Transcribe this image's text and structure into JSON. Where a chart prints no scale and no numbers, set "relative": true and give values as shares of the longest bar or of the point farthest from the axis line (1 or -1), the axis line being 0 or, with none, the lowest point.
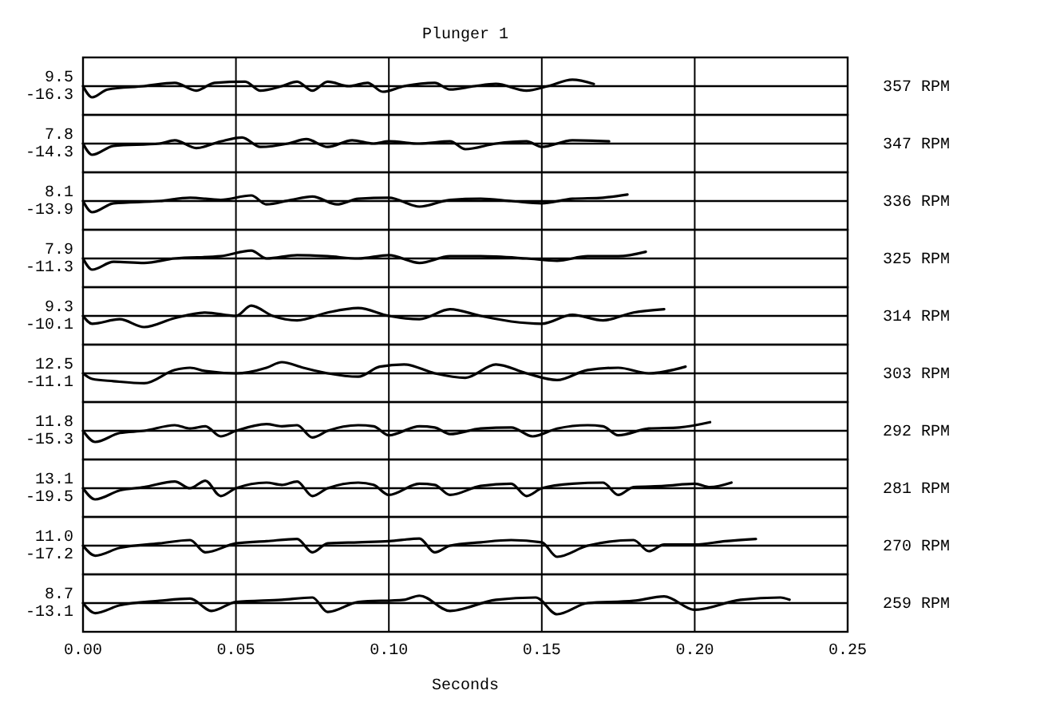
{
  "chart_data": [
    {
      "type": "line",
      "title": "Plunger 1",
      "relative": true,
      "y2label": "357 RPM",
      "annotations": [
        "9.5",
        "-16.3"
      ],
      "xlim": [
        0,
        0.25
      ],
      "xticks": [
        0,
        0.05,
        0.1,
        0.15,
        0.2,
        0.25
      ],
      "tick_labels": false,
      "grid": "x",
      "series": [
        {
          "color": "#000000",
          "x": [
            0,
            0.003,
            0.008,
            0.02,
            0.03,
            0.037,
            0.043,
            0.053,
            0.058,
            0.065,
            0.07,
            0.075,
            0.08,
            0.087,
            0.093,
            0.098,
            0.105,
            0.115,
            0.12,
            0.128,
            0.135,
            0.145,
            0.152,
            0.16,
            0.167
          ],
          "values": [
            0,
            -1,
            -0.3,
            0,
            0.3,
            -0.4,
            0.3,
            0.4,
            -0.4,
            0,
            0.4,
            -0.4,
            0.4,
            0,
            0.3,
            -0.5,
            0,
            0.3,
            -0.3,
            0,
            0.2,
            -0.4,
            0,
            0.58,
            0.2
          ]
        }
      ]
    },
    {
      "type": "line",
      "relative": true,
      "y2label": "347 RPM",
      "annotations": [
        "7.8",
        "-14.3"
      ],
      "xlim": [
        0,
        0.25
      ],
      "xticks": [
        0,
        0.05,
        0.1,
        0.15,
        0.2,
        0.25
      ],
      "tick_labels": false,
      "grid": "x",
      "series": [
        {
          "color": "#000000",
          "x": [
            0,
            0.003,
            0.01,
            0.025,
            0.03,
            0.037,
            0.045,
            0.052,
            0.058,
            0.067,
            0.073,
            0.08,
            0.088,
            0.095,
            0.1,
            0.11,
            0.12,
            0.125,
            0.135,
            0.145,
            0.15,
            0.16,
            0.172
          ],
          "values": [
            0,
            -1,
            -0.2,
            0,
            0.3,
            -0.4,
            0.2,
            0.55,
            -0.3,
            0,
            0.4,
            -0.3,
            0.3,
            0,
            0.2,
            0,
            0.2,
            -0.5,
            0,
            0.2,
            -0.3,
            0.3,
            0.2
          ]
        }
      ]
    },
    {
      "type": "line",
      "relative": true,
      "y2label": "336 RPM",
      "annotations": [
        "8.1",
        "-13.9"
      ],
      "xlim": [
        0,
        0.25
      ],
      "xticks": [
        0,
        0.05,
        0.1,
        0.15,
        0.2,
        0.25
      ],
      "tick_labels": false,
      "grid": "x",
      "series": [
        {
          "color": "#000000",
          "x": [
            0,
            0.003,
            0.01,
            0.025,
            0.035,
            0.045,
            0.055,
            0.06,
            0.068,
            0.075,
            0.083,
            0.09,
            0.1,
            0.11,
            0.12,
            0.13,
            0.14,
            0.15,
            0.16,
            0.17,
            0.178
          ],
          "values": [
            0,
            -1,
            -0.2,
            0,
            0.3,
            0.1,
            0.5,
            -0.3,
            0.1,
            0.4,
            -0.3,
            0.2,
            0.3,
            -0.5,
            0.1,
            0.2,
            0,
            -0.2,
            0.2,
            0.3,
            0.58
          ]
        }
      ]
    },
    {
      "type": "line",
      "relative": true,
      "y2label": "325 RPM",
      "annotations": [
        "7.9",
        "-11.3"
      ],
      "xlim": [
        0,
        0.25
      ],
      "xticks": [
        0,
        0.05,
        0.1,
        0.15,
        0.2,
        0.25
      ],
      "tick_labels": false,
      "grid": "x",
      "series": [
        {
          "color": "#000000",
          "x": [
            0,
            0.003,
            0.01,
            0.02,
            0.03,
            0.045,
            0.055,
            0.06,
            0.07,
            0.08,
            0.09,
            0.1,
            0.11,
            0.12,
            0.13,
            0.145,
            0.155,
            0.165,
            0.175,
            0.184
          ],
          "values": [
            0,
            -1,
            -0.3,
            -0.4,
            0,
            0.2,
            0.7,
            0,
            0.3,
            0.2,
            0,
            0.3,
            -0.4,
            0.2,
            0.2,
            0,
            -0.2,
            0.2,
            0.2,
            0.6
          ]
        }
      ]
    },
    {
      "type": "line",
      "relative": true,
      "y2label": "314 RPM",
      "annotations": [
        "9.3",
        "-10.1"
      ],
      "xlim": [
        0,
        0.25
      ],
      "xticks": [
        0,
        0.05,
        0.1,
        0.15,
        0.2,
        0.25
      ],
      "tick_labels": false,
      "grid": "x",
      "series": [
        {
          "color": "#000000",
          "x": [
            0,
            0.003,
            0.012,
            0.02,
            0.03,
            0.04,
            0.05,
            0.055,
            0.062,
            0.07,
            0.08,
            0.09,
            0.1,
            0.11,
            0.12,
            0.13,
            0.14,
            0.15,
            0.16,
            0.17,
            0.18,
            0.19
          ],
          "values": [
            0,
            -0.7,
            -0.3,
            -1,
            -0.2,
            0.3,
            0,
            0.92,
            0,
            -0.4,
            0.3,
            0.7,
            0,
            -0.3,
            0.6,
            0,
            -0.5,
            -0.7,
            0.1,
            -0.4,
            0.3,
            0.6
          ]
        }
      ]
    },
    {
      "type": "line",
      "relative": true,
      "y2label": "303 RPM",
      "annotations": [
        "12.5",
        "-11.1"
      ],
      "xlim": [
        0,
        0.25
      ],
      "xticks": [
        0,
        0.05,
        0.1,
        0.15,
        0.2,
        0.25
      ],
      "tick_labels": false,
      "grid": "x",
      "series": [
        {
          "color": "#000000",
          "x": [
            0,
            0.003,
            0.01,
            0.02,
            0.03,
            0.035,
            0.04,
            0.05,
            0.06,
            0.065,
            0.072,
            0.08,
            0.09,
            0.097,
            0.105,
            0.115,
            0.125,
            0.135,
            0.145,
            0.155,
            0.165,
            0.175,
            0.185,
            0.197
          ],
          "values": [
            0,
            -0.5,
            -0.7,
            -0.89,
            0.3,
            0.5,
            0.2,
            0,
            0.5,
            1,
            0.5,
            0,
            -0.3,
            0.6,
            0.8,
            0,
            -0.4,
            0.8,
            0,
            -0.6,
            0.3,
            0.5,
            0,
            0.6
          ]
        }
      ]
    },
    {
      "type": "line",
      "relative": true,
      "y2label": "292 RPM",
      "annotations": [
        "11.8",
        "-15.3"
      ],
      "xlim": [
        0,
        0.25
      ],
      "xticks": [
        0,
        0.05,
        0.1,
        0.15,
        0.2,
        0.25
      ],
      "tick_labels": false,
      "grid": "x",
      "series": [
        {
          "color": "#000000",
          "x": [
            0,
            0.004,
            0.012,
            0.02,
            0.03,
            0.035,
            0.04,
            0.045,
            0.05,
            0.06,
            0.065,
            0.07,
            0.075,
            0.08,
            0.09,
            0.095,
            0.1,
            0.11,
            0.115,
            0.12,
            0.13,
            0.14,
            0.147,
            0.155,
            0.165,
            0.17,
            0.175,
            0.185,
            0.195,
            0.205
          ],
          "values": [
            0,
            -1,
            -0.2,
            0,
            0.5,
            0.2,
            0.4,
            -0.5,
            0,
            0.6,
            0.4,
            0.5,
            -0.6,
            0,
            0.5,
            0.4,
            -0.4,
            0.4,
            0.3,
            -0.3,
            0.2,
            0.3,
            -0.5,
            0.2,
            0.5,
            0.4,
            -0.4,
            0.2,
            0.3,
            0.77
          ]
        }
      ]
    },
    {
      "type": "line",
      "relative": true,
      "y2label": "281 RPM",
      "annotations": [
        "13.1",
        "-19.5"
      ],
      "xlim": [
        0,
        0.25
      ],
      "xticks": [
        0,
        0.05,
        0.1,
        0.15,
        0.2,
        0.25
      ],
      "tick_labels": false,
      "grid": "x",
      "series": [
        {
          "color": "#000000",
          "x": [
            0,
            0.004,
            0.012,
            0.02,
            0.03,
            0.035,
            0.04,
            0.045,
            0.05,
            0.06,
            0.065,
            0.07,
            0.075,
            0.08,
            0.09,
            0.095,
            0.1,
            0.11,
            0.115,
            0.12,
            0.13,
            0.14,
            0.145,
            0.15,
            0.16,
            0.17,
            0.175,
            0.18,
            0.19,
            0.2,
            0.205,
            0.212
          ],
          "values": [
            0,
            -1,
            -0.2,
            0.1,
            0.6,
            0,
            0.67,
            -0.7,
            0,
            0.5,
            0.3,
            0.6,
            -0.7,
            0,
            0.5,
            0.3,
            -0.6,
            0.4,
            0.3,
            -0.6,
            0.2,
            0.4,
            -0.7,
            0,
            0.4,
            0.5,
            -0.6,
            0.1,
            0.2,
            0.4,
            0.1,
            0.5
          ]
        }
      ]
    },
    {
      "type": "line",
      "relative": true,
      "y2label": "270 RPM",
      "annotations": [
        "11.0",
        "-17.2"
      ],
      "xlim": [
        0,
        0.25
      ],
      "xticks": [
        0,
        0.05,
        0.1,
        0.15,
        0.2,
        0.25
      ],
      "tick_labels": false,
      "grid": "x",
      "series": [
        {
          "color": "#000000",
          "x": [
            0,
            0.004,
            0.012,
            0.025,
            0.035,
            0.04,
            0.05,
            0.06,
            0.07,
            0.075,
            0.08,
            0.09,
            0.1,
            0.11,
            0.115,
            0.12,
            0.13,
            0.14,
            0.15,
            0.155,
            0.165,
            0.18,
            0.185,
            0.19,
            0.2,
            0.21,
            0.22
          ],
          "values": [
            0,
            -0.9,
            -0.2,
            0.2,
            0.5,
            -0.6,
            0.2,
            0.4,
            0.6,
            -0.6,
            0.2,
            0.3,
            0.4,
            0.64,
            -0.6,
            0,
            0.3,
            0.5,
            0.3,
            -1,
            0,
            0.5,
            -0.5,
            0.1,
            0.1,
            0.4,
            0.6
          ]
        }
      ]
    },
    {
      "type": "line",
      "relative": true,
      "y2label": "259 RPM",
      "xlabel": "Seconds",
      "annotations": [
        "8.7",
        "-13.1"
      ],
      "xlim": [
        0,
        0.25
      ],
      "xticks": [
        {
          "value": 0,
          "label": "0.00"
        },
        {
          "value": 0.05,
          "label": "0.05"
        },
        {
          "value": 0.1,
          "label": "0.10"
        },
        {
          "value": 0.15,
          "label": "0.15"
        },
        {
          "value": 0.2,
          "label": "0.20"
        },
        {
          "value": 0.25,
          "label": "0.25"
        }
      ],
      "tick_labels": "x",
      "grid": "x",
      "series": [
        {
          "color": "#000000",
          "x": [
            0,
            0.004,
            0.012,
            0.025,
            0.035,
            0.042,
            0.05,
            0.065,
            0.075,
            0.08,
            0.09,
            0.105,
            0.11,
            0.12,
            0.135,
            0.148,
            0.155,
            0.165,
            0.18,
            0.19,
            0.2,
            0.215,
            0.228,
            0.231
          ],
          "values": [
            0,
            -0.9,
            -0.2,
            0.2,
            0.4,
            -0.7,
            0.1,
            0.3,
            0.5,
            -0.8,
            0.1,
            0.3,
            0.66,
            -0.7,
            0.3,
            0.5,
            -1,
            0,
            0.2,
            0.6,
            -0.6,
            0.3,
            0.5,
            0.3
          ]
        }
      ]
    }
  ]
}
